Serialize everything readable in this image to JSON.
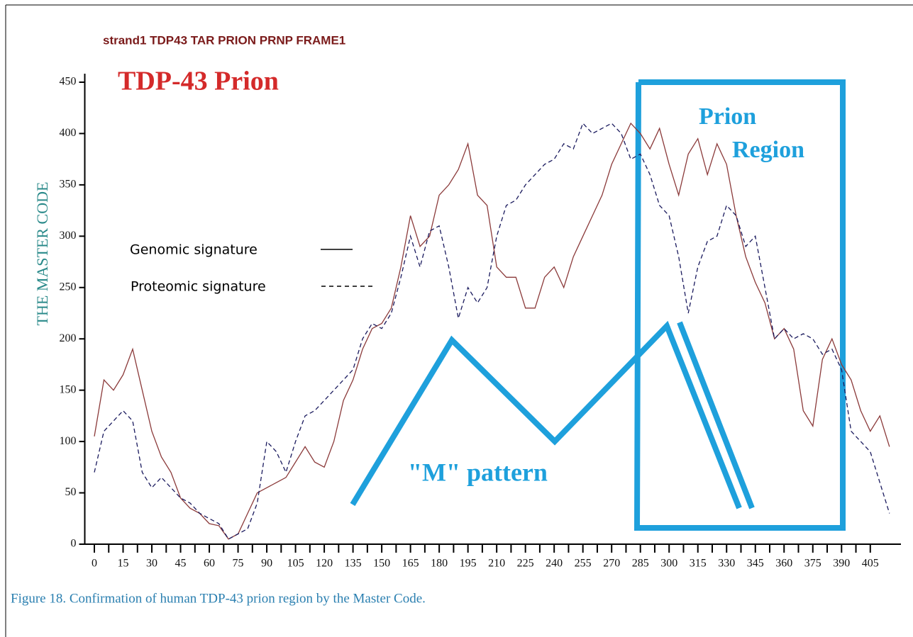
{
  "chart_data": {
    "type": "line",
    "title": "strand1 TDP43 TAR PRION PRNP FRAME1",
    "ylabel": "THE MASTER CODE",
    "caption": "Figure 18. Confirmation of human TDP-43 prion region by the Master Code.",
    "annotations": [
      "TDP-43 Prion",
      "Prion",
      "Region",
      "\"M\" pattern"
    ],
    "x": [
      0,
      5,
      10,
      15,
      20,
      25,
      30,
      35,
      40,
      45,
      50,
      55,
      60,
      65,
      70,
      75,
      80,
      85,
      90,
      95,
      100,
      105,
      110,
      115,
      120,
      125,
      130,
      135,
      140,
      145,
      150,
      155,
      160,
      165,
      170,
      175,
      180,
      185,
      190,
      195,
      200,
      205,
      210,
      215,
      220,
      225,
      230,
      235,
      240,
      245,
      250,
      255,
      260,
      265,
      270,
      275,
      280,
      285,
      290,
      295,
      300,
      305,
      310,
      315,
      320,
      325,
      330,
      335,
      340,
      345,
      350,
      355,
      360,
      365,
      370,
      375,
      380,
      385,
      390,
      395,
      400,
      405,
      410,
      415
    ],
    "series": [
      {
        "name": "Genomic signature",
        "color": "#8b3a3a",
        "dash": false,
        "values": [
          105,
          160,
          150,
          165,
          190,
          150,
          110,
          85,
          70,
          45,
          35,
          30,
          20,
          18,
          5,
          10,
          30,
          50,
          55,
          60,
          65,
          80,
          95,
          80,
          75,
          100,
          140,
          160,
          190,
          210,
          215,
          230,
          270,
          320,
          290,
          300,
          340,
          350,
          365,
          390,
          340,
          330,
          270,
          260,
          260,
          230,
          230,
          260,
          270,
          250,
          280,
          300,
          320,
          340,
          370,
          390,
          410,
          400,
          385,
          405,
          370,
          340,
          380,
          395,
          360,
          390,
          370,
          320,
          280,
          255,
          235,
          200,
          210,
          190,
          130,
          115,
          180,
          200,
          175,
          160,
          130,
          110,
          125,
          95
        ]
      },
      {
        "name": "Proteomic signature",
        "color": "#1a1a5e",
        "dash": true,
        "values": [
          70,
          110,
          120,
          130,
          120,
          70,
          55,
          65,
          55,
          45,
          40,
          30,
          25,
          20,
          5,
          10,
          15,
          40,
          100,
          90,
          70,
          100,
          125,
          130,
          140,
          150,
          160,
          170,
          200,
          215,
          210,
          225,
          260,
          300,
          270,
          305,
          310,
          270,
          220,
          250,
          235,
          250,
          300,
          330,
          335,
          350,
          360,
          370,
          375,
          390,
          385,
          410,
          400,
          405,
          410,
          400,
          375,
          380,
          360,
          330,
          320,
          280,
          225,
          270,
          295,
          300,
          330,
          320,
          290,
          300,
          250,
          200,
          210,
          200,
          205,
          200,
          185,
          190,
          170,
          110,
          100,
          90,
          60,
          30
        ]
      }
    ],
    "xlim": [
      -5,
      421
    ],
    "ylim": [
      0,
      450
    ],
    "xticks": [
      0,
      15,
      30,
      45,
      60,
      75,
      90,
      105,
      120,
      135,
      150,
      165,
      180,
      195,
      210,
      225,
      240,
      255,
      270,
      285,
      300,
      315,
      330,
      345,
      360,
      375,
      390,
      405
    ],
    "yticks": [
      0,
      50,
      100,
      150,
      200,
      250,
      300,
      350,
      400,
      450
    ]
  }
}
